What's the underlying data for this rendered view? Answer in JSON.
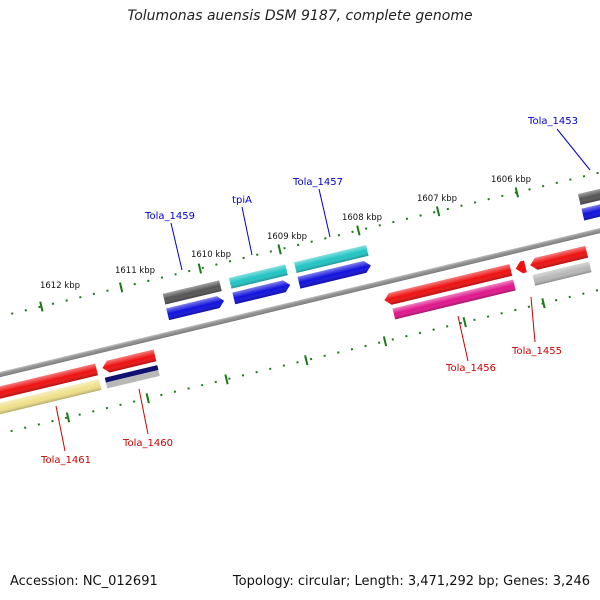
{
  "title": "Tolumonas auensis DSM 9187, complete genome",
  "footer": {
    "accession": "Accession: NC_012691",
    "topology": "Topology: circular; Length: 3,471,292 bp; Genes: 3,246"
  },
  "colors": {
    "backbone": "#8c8c8c",
    "ticks": "#1a7a1a",
    "forward_label": "#0000cc",
    "reverse_label": "#cc0000",
    "red_cds": "#ee1111",
    "blue_cds": "#1111dd",
    "gray_gene": "#555555",
    "teal_gene": "#22c4c4",
    "pink_gene": "#e0168c",
    "yellow_gene": "#f0e08a",
    "silver_gene": "#b8b8b8",
    "navy_gene": "#101070"
  },
  "kbp_labels": [
    "1612 kbp",
    "1611 kbp",
    "1610 kbp",
    "1609 kbp",
    "1608 kbp",
    "1607 kbp",
    "1606 kbp"
  ],
  "forward_labels": [
    "Tola_1459",
    "tpiA",
    "Tola_1457",
    "Tola_1453"
  ],
  "reverse_labels": [
    "Tola_1461",
    "Tola_1460",
    "Tola_1456",
    "Tola_1455"
  ]
}
